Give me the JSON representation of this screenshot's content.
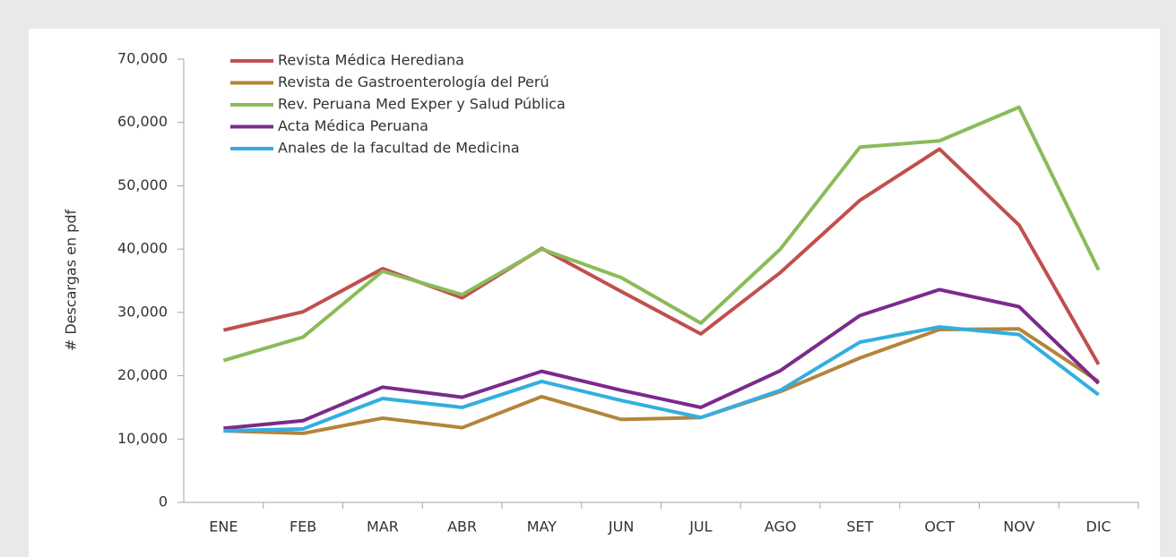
{
  "chart_data": {
    "type": "line",
    "y_label": "# Descargas en pdf",
    "categories": [
      "ENE",
      "FEB",
      "MAR",
      "ABR",
      "MAY",
      "JUN",
      "JUL",
      "AGO",
      "SET",
      "OCT",
      "NOV",
      "DIC"
    ],
    "series": [
      {
        "name": "Revista Médica Herediana",
        "color": "#c0504d",
        "values": [
          27200,
          30100,
          36900,
          32300,
          40100,
          33300,
          26600,
          36300,
          47700,
          55800,
          43800,
          21800
        ]
      },
      {
        "name": "Revista de Gastroenterología del Perú",
        "color": "#b5843a",
        "values": [
          11300,
          10900,
          13300,
          11800,
          16700,
          13100,
          13400,
          17500,
          22800,
          27300,
          27400,
          19100
        ]
      },
      {
        "name": "Rev. Peruana Med Exper y Salud Pública",
        "color": "#8bbb5a",
        "values": [
          22400,
          26100,
          36500,
          32800,
          40000,
          35500,
          28300,
          40000,
          56100,
          57100,
          62400,
          36700
        ]
      },
      {
        "name": "Acta Médica Peruana",
        "color": "#7b2a8c",
        "values": [
          11700,
          12900,
          18200,
          16600,
          20700,
          17700,
          15000,
          20800,
          29500,
          33600,
          30900,
          18800
        ]
      },
      {
        "name": "Anales de la facultad de Medicina",
        "color": "#33aee0",
        "values": [
          11300,
          11600,
          16400,
          15000,
          19100,
          16100,
          13400,
          17700,
          25300,
          27700,
          26500,
          17000
        ]
      }
    ],
    "ylim": [
      0,
      70000
    ],
    "yticks": [
      0,
      {
        "value": 10000,
        "label": "10,000"
      },
      {
        "value": 20000,
        "label": "20,000"
      },
      {
        "value": 30000,
        "label": "30,000"
      },
      {
        "value": 40000,
        "label": "40,000"
      },
      {
        "value": 50000,
        "label": "50,000"
      },
      {
        "value": 60000,
        "label": "60,000"
      },
      {
        "value": 70000,
        "label": "70,000"
      }
    ],
    "grid": false,
    "legend": "top-left"
  }
}
